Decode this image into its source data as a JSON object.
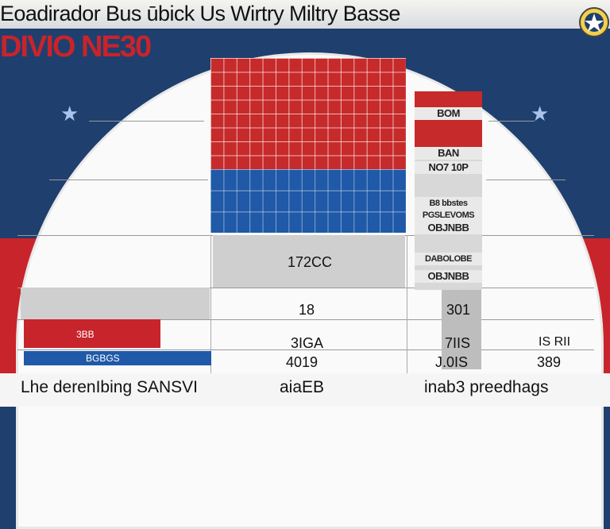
{
  "header": {
    "title": "Eoadirador Bus  ūbick  Us Wirtry Miltry  Basse",
    "subtitle": "DIVIO NE30"
  },
  "colors": {
    "red": "#c8242b",
    "blue": "#1f59a8",
    "navy": "#1f3f6e",
    "gray": "#cfcfcf"
  },
  "icons": [
    "star-icon",
    "emblem-icon"
  ],
  "column_labels": [
    "BOM",
    "BAN",
    "NO7 10P",
    "B8 bbstes",
    "PGSLEVOMS",
    "OBJNBB",
    "DABOLOBE",
    "OBJNBB"
  ],
  "values": {
    "panel_value": "172CC",
    "row1_mid": "18",
    "row1_right": "301",
    "row2_left": "3BB",
    "row2_mid": "3IGA",
    "row2_col": "7IIS",
    "row2_right": "IS RII",
    "row3_left": "BGBGS",
    "row3_mid": "4019",
    "row3_col": "J.0IS",
    "row3_right": "389"
  },
  "footer": {
    "left": "Lhe derenIbing SANSVI",
    "mid": "aiaEB",
    "right": "inab3 preedhags"
  }
}
